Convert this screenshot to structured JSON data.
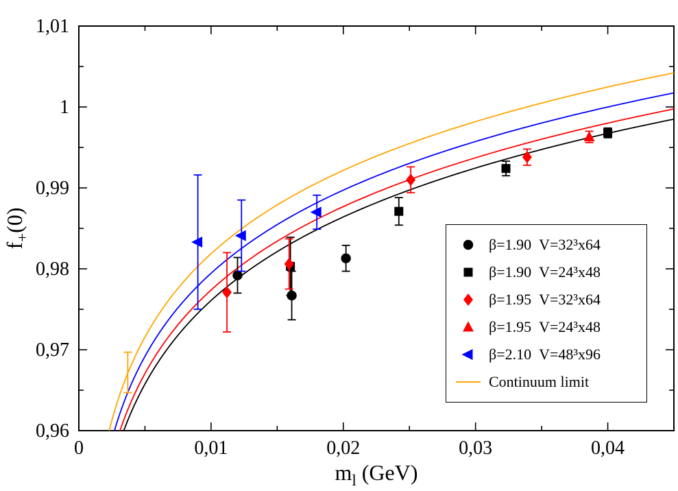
{
  "figure": {
    "background": "#ffffff"
  },
  "chart_data": {
    "type": "scatter",
    "title": "",
    "xlabel": "m_l (GeV)",
    "ylabel": "f_+(0)",
    "xlabel_parts": [
      {
        "text": "m"
      },
      {
        "text": "l",
        "sub": true
      },
      {
        "text": " (GeV)"
      }
    ],
    "ylabel_parts": [
      {
        "text": "f"
      },
      {
        "text": "+",
        "sub": true
      },
      {
        "text": "(0)"
      }
    ],
    "xlim": [
      0,
      0.045
    ],
    "ylim": [
      0.96,
      1.01
    ],
    "x_ticks": [
      {
        "value": 0,
        "label": "0"
      },
      {
        "value": 0.01,
        "label": "0,01"
      },
      {
        "value": 0.02,
        "label": "0,02"
      },
      {
        "value": 0.03,
        "label": "0,03"
      },
      {
        "value": 0.04,
        "label": "0,04"
      }
    ],
    "y_ticks": [
      {
        "value": 0.96,
        "label": "0,96"
      },
      {
        "value": 0.97,
        "label": "0,97"
      },
      {
        "value": 0.98,
        "label": "0,98"
      },
      {
        "value": 0.99,
        "label": "0,99"
      },
      {
        "value": 1.0,
        "label": "1"
      },
      {
        "value": 1.01,
        "label": "1,01"
      }
    ],
    "x_minor_step": 0.005,
    "y_minor_step": 0.005,
    "grid": false,
    "colors": {
      "beta190": "#000000",
      "beta195": "#ff0000",
      "beta210": "#0000ff",
      "continuum": "#ffa500"
    },
    "legend": {
      "position": "right-center",
      "border": true,
      "items": [
        {
          "marker": "circle",
          "color": "#000000",
          "label": "β=1.90  V=32³x64"
        },
        {
          "marker": "square",
          "color": "#000000",
          "label": "β=1.90  V=24³x48"
        },
        {
          "marker": "diamond",
          "color": "#ff0000",
          "label": "β=1.95  V=32³x64"
        },
        {
          "marker": "triangle-up",
          "color": "#ff0000",
          "label": "β=1.95  V=24³x48"
        },
        {
          "marker": "triangle-left",
          "color": "#0000ff",
          "label": "β=2.10  V=48³x96"
        },
        {
          "marker": "line",
          "color": "#ffa500",
          "label": "Continuum limit"
        }
      ]
    },
    "series": [
      {
        "name": "beta190-V32x64",
        "label": "β=1.90  V=32³x64",
        "color": "#000000",
        "marker": "circle",
        "points": [
          {
            "x": 0.012,
            "y": 0.9792,
            "err": 0.0022
          },
          {
            "x": 0.0161,
            "y": 0.9767,
            "err": 0.003
          },
          {
            "x": 0.0202,
            "y": 0.9813,
            "err": 0.0016
          }
        ]
      },
      {
        "name": "beta190-V24x48",
        "label": "β=1.90  V=24³x48",
        "color": "#000000",
        "marker": "square",
        "points": [
          {
            "x": 0.016,
            "y": 0.9803,
            "err": 0.0036
          },
          {
            "x": 0.0242,
            "y": 0.9871,
            "err": 0.0017
          },
          {
            "x": 0.0323,
            "y": 0.9924,
            "err": 0.0009
          },
          {
            "x": 0.04,
            "y": 0.9968,
            "err": 0.0006
          }
        ]
      },
      {
        "name": "beta195-V32x64",
        "label": "β=1.95  V=32³x64",
        "color": "#ff0000",
        "marker": "diamond",
        "points": [
          {
            "x": 0.0112,
            "y": 0.9771,
            "err": 0.0049
          },
          {
            "x": 0.0159,
            "y": 0.9806,
            "err": 0.0031
          },
          {
            "x": 0.0251,
            "y": 0.991,
            "err": 0.0016
          },
          {
            "x": 0.0339,
            "y": 0.9938,
            "err": 0.001
          }
        ]
      },
      {
        "name": "beta195-V24x48",
        "label": "β=1.95  V=24³x48",
        "color": "#ff0000",
        "marker": "triangle-up",
        "points": [
          {
            "x": 0.0386,
            "y": 0.9963,
            "err": 0.0007
          }
        ]
      },
      {
        "name": "beta210-V48x96",
        "label": "β=2.10  V=48³x96",
        "color": "#0000ff",
        "marker": "triangle-left",
        "points": [
          {
            "x": 0.009,
            "y": 0.9833,
            "err": 0.0083
          },
          {
            "x": 0.0123,
            "y": 0.9841,
            "err": 0.0044
          },
          {
            "x": 0.018,
            "y": 0.987,
            "err": 0.0021
          }
        ]
      },
      {
        "name": "continuum-physical-point",
        "label": "",
        "color": "#ffa500",
        "marker": "none",
        "points": [
          {
            "x": 0.0037,
            "y": 0.9672,
            "err": 0.0025
          }
        ]
      }
    ],
    "curves": [
      {
        "name": "fit-beta190",
        "color": "#000000",
        "a": 1.0447,
        "b": 0.0149,
        "label": ""
      },
      {
        "name": "fit-beta195",
        "color": "#ff0000",
        "a": 1.0459,
        "b": 0.01488,
        "label": ""
      },
      {
        "name": "fit-beta210",
        "color": "#0000ff",
        "a": 1.0477,
        "b": 0.01482,
        "label": ""
      },
      {
        "name": "continuum-limit",
        "color": "#ffa500",
        "a": 1.0503,
        "b": 0.01486,
        "label": "Continuum limit"
      }
    ]
  }
}
